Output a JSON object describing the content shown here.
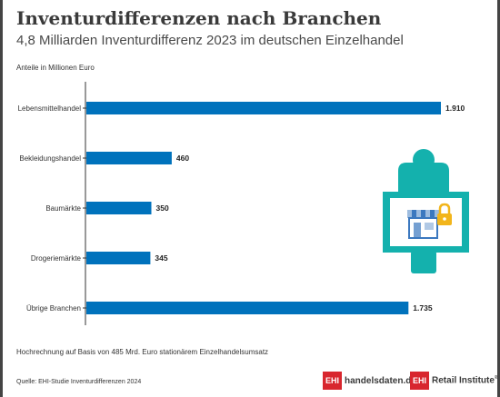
{
  "header": {
    "title": "Inventurdifferenzen nach Branchen",
    "subtitle": "4,8 Milliarden Inventurdifferenz 2023 im deutschen Einzelhandel"
  },
  "chart_data": {
    "type": "bar",
    "orientation": "horizontal",
    "units_label": "Anteile in Millionen Euro",
    "categories": [
      "Lebensmittelhandel",
      "Bekleidungshandel",
      "Baumärkte",
      "Drogeriemärkte",
      "Übrige Branchen"
    ],
    "values": [
      1910,
      460,
      350,
      345,
      1735
    ],
    "value_labels": [
      "1.910",
      "460",
      "350",
      "345",
      "1.735"
    ],
    "xlim": [
      0,
      1910
    ],
    "bar_color": "#0072bc",
    "grid": false
  },
  "footer": {
    "note": "Hochrechnung auf Basis von 485 Mrd. Euro stationärem Einzelhandelsumsatz",
    "source": "Quelle: EHI-Studie Inventurdifferenzen 2024",
    "logo_1_box": "EHI",
    "logo_1_text": "handelsdaten.de",
    "logo_2_box": "EHI",
    "logo_2_text": "Retail Institute",
    "logo_2_mark": "®"
  },
  "colors": {
    "bar": "#0072bc",
    "illustration": "#14b1ad",
    "lock": "#f2b51b",
    "logo_red": "#d8262e"
  },
  "illustration": {
    "icon": "person-holding-store-sign-icon"
  }
}
